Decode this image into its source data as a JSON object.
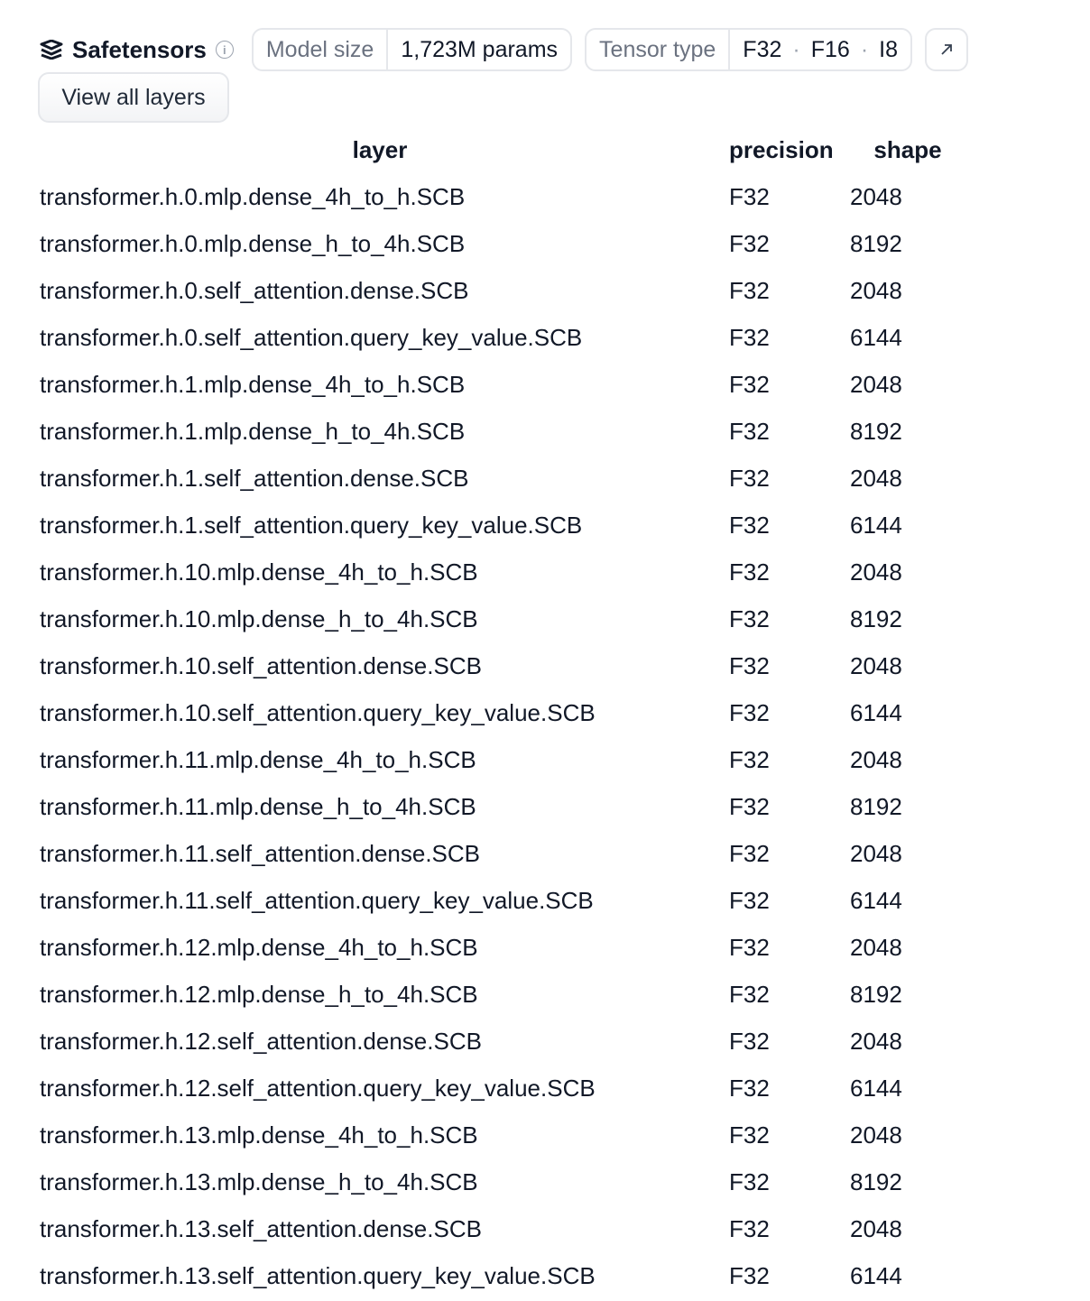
{
  "header": {
    "title": "Safetensors",
    "info_icon": "info-icon",
    "model_size_label": "Model size",
    "model_size_value": "1,723M params",
    "tensor_type_label": "Tensor type",
    "tensor_types": [
      "F32",
      "F16",
      "I8"
    ],
    "separator": "·",
    "external_icon": "arrow-up-right-icon"
  },
  "view_all_label": "View all layers",
  "table": {
    "columns": [
      "layer",
      "precision",
      "shape"
    ],
    "rows": [
      [
        "transformer.h.0.mlp.dense_4h_to_h.SCB",
        "F32",
        "2048"
      ],
      [
        "transformer.h.0.mlp.dense_h_to_4h.SCB",
        "F32",
        "8192"
      ],
      [
        "transformer.h.0.self_attention.dense.SCB",
        "F32",
        "2048"
      ],
      [
        "transformer.h.0.self_attention.query_key_value.SCB",
        "F32",
        "6144"
      ],
      [
        "transformer.h.1.mlp.dense_4h_to_h.SCB",
        "F32",
        "2048"
      ],
      [
        "transformer.h.1.mlp.dense_h_to_4h.SCB",
        "F32",
        "8192"
      ],
      [
        "transformer.h.1.self_attention.dense.SCB",
        "F32",
        "2048"
      ],
      [
        "transformer.h.1.self_attention.query_key_value.SCB",
        "F32",
        "6144"
      ],
      [
        "transformer.h.10.mlp.dense_4h_to_h.SCB",
        "F32",
        "2048"
      ],
      [
        "transformer.h.10.mlp.dense_h_to_4h.SCB",
        "F32",
        "8192"
      ],
      [
        "transformer.h.10.self_attention.dense.SCB",
        "F32",
        "2048"
      ],
      [
        "transformer.h.10.self_attention.query_key_value.SCB",
        "F32",
        "6144"
      ],
      [
        "transformer.h.11.mlp.dense_4h_to_h.SCB",
        "F32",
        "2048"
      ],
      [
        "transformer.h.11.mlp.dense_h_to_4h.SCB",
        "F32",
        "8192"
      ],
      [
        "transformer.h.11.self_attention.dense.SCB",
        "F32",
        "2048"
      ],
      [
        "transformer.h.11.self_attention.query_key_value.SCB",
        "F32",
        "6144"
      ],
      [
        "transformer.h.12.mlp.dense_4h_to_h.SCB",
        "F32",
        "2048"
      ],
      [
        "transformer.h.12.mlp.dense_h_to_4h.SCB",
        "F32",
        "8192"
      ],
      [
        "transformer.h.12.self_attention.dense.SCB",
        "F32",
        "2048"
      ],
      [
        "transformer.h.12.self_attention.query_key_value.SCB",
        "F32",
        "6144"
      ],
      [
        "transformer.h.13.mlp.dense_4h_to_h.SCB",
        "F32",
        "2048"
      ],
      [
        "transformer.h.13.mlp.dense_h_to_4h.SCB",
        "F32",
        "8192"
      ],
      [
        "transformer.h.13.self_attention.dense.SCB",
        "F32",
        "2048"
      ],
      [
        "transformer.h.13.self_attention.query_key_value.SCB",
        "F32",
        "6144"
      ]
    ]
  }
}
